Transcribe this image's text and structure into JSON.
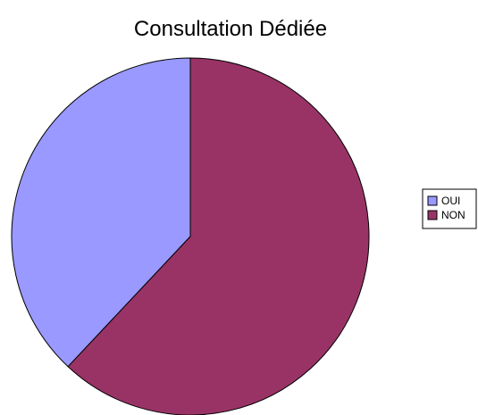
{
  "chart_data": {
    "type": "pie",
    "title": "Consultation Dédiée",
    "categories": [
      "OUI",
      "NON"
    ],
    "values": [
      38,
      62
    ],
    "colors": [
      "#9999ff",
      "#993366"
    ],
    "legend": "right"
  }
}
